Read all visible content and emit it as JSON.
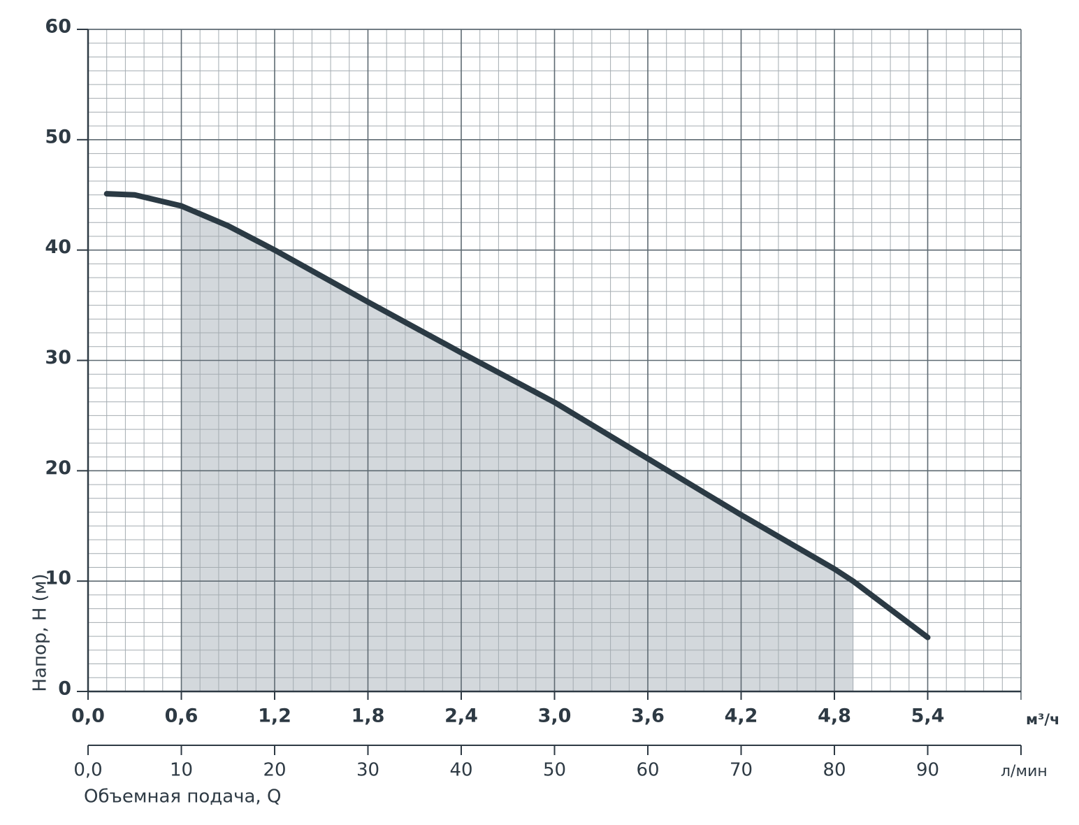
{
  "chart_data": {
    "type": "line",
    "y_label": "Напор, H (м)",
    "x_label": "Объемная подача, Q",
    "x_unit": "м³/ч",
    "x2_unit": "л/мин",
    "x": [
      0.12,
      0.3,
      0.6,
      0.9,
      1.2,
      1.8,
      2.4,
      3.0,
      3.6,
      4.2,
      4.8,
      4.92,
      5.4
    ],
    "series": [
      {
        "color": "#2b3a44",
        "values": [
          45.1,
          45,
          44,
          42.2,
          40,
          35.3,
          30.7,
          26.2,
          21.1,
          16,
          11.1,
          10,
          4.9
        ]
      }
    ],
    "shaded_range": [
      0.6,
      4.92
    ],
    "shade_color": "#d3d8dc",
    "xlim": [
      0,
      6
    ],
    "ylim": [
      0,
      60
    ],
    "x2lim": [
      0,
      100
    ],
    "xticks": [
      {
        "value": 0,
        "label": "0,0"
      },
      {
        "value": 0.6,
        "label": "0,6"
      },
      {
        "value": 1.2,
        "label": "1,2"
      },
      {
        "value": 1.8,
        "label": "1,8"
      },
      {
        "value": 2.4,
        "label": "2,4"
      },
      {
        "value": 3.0,
        "label": "3,0"
      },
      {
        "value": 3.6,
        "label": "3,6"
      },
      {
        "value": 4.2,
        "label": "4,2"
      },
      {
        "value": 4.8,
        "label": "4,8"
      },
      {
        "value": 5.4,
        "label": "5,4"
      }
    ],
    "x2ticks": [
      {
        "value": 0,
        "label": "0,0"
      },
      10,
      20,
      30,
      40,
      50,
      60,
      70,
      80,
      90
    ],
    "yticks": [
      0,
      10,
      20,
      30,
      40,
      50,
      60
    ],
    "grid": true
  }
}
